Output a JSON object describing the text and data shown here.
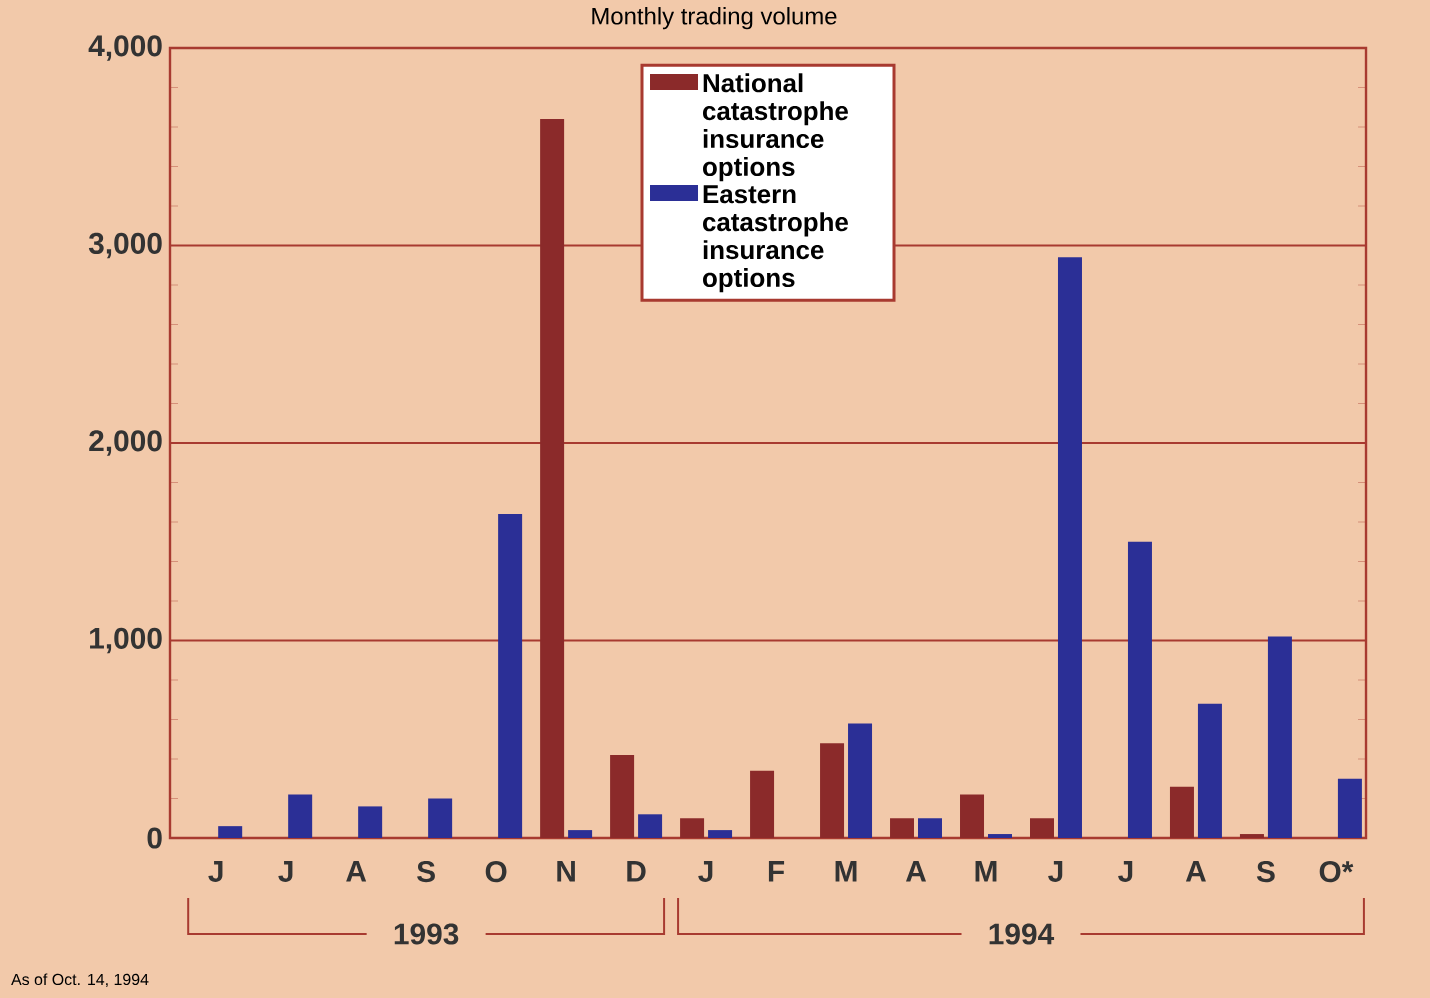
{
  "chart_data": {
    "type": "bar",
    "title": "Monthly trading volume",
    "categories": [
      "J",
      "J",
      "A",
      "S",
      "O",
      "N",
      "D",
      "J",
      "F",
      "M",
      "A",
      "M",
      "J",
      "J",
      "A",
      "S",
      "O*"
    ],
    "series": [
      {
        "name": "National catastrophe insurance options",
        "color": "#8b2a2a",
        "values": [
          0,
          0,
          0,
          0,
          0,
          3640,
          420,
          100,
          340,
          480,
          100,
          220,
          100,
          0,
          260,
          20,
          0
        ]
      },
      {
        "name": "Eastern catastrophe insurance options",
        "color": "#2b2f96",
        "values": [
          60,
          220,
          160,
          200,
          1640,
          40,
          120,
          40,
          0,
          580,
          100,
          20,
          2940,
          1500,
          680,
          1020,
          300
        ]
      }
    ],
    "ylim": [
      0,
      4000
    ],
    "yticks": [
      0,
      {
        "value": 1000,
        "label": "1,000"
      },
      {
        "value": 2000,
        "label": "2,000"
      },
      {
        "value": 3000,
        "label": "3,000"
      },
      {
        "value": 4000,
        "label": "4,000"
      }
    ],
    "grid": "y",
    "legend": "top",
    "annotations": [
      "1993",
      "1994",
      "As of Oct. 14, 1994"
    ]
  }
}
